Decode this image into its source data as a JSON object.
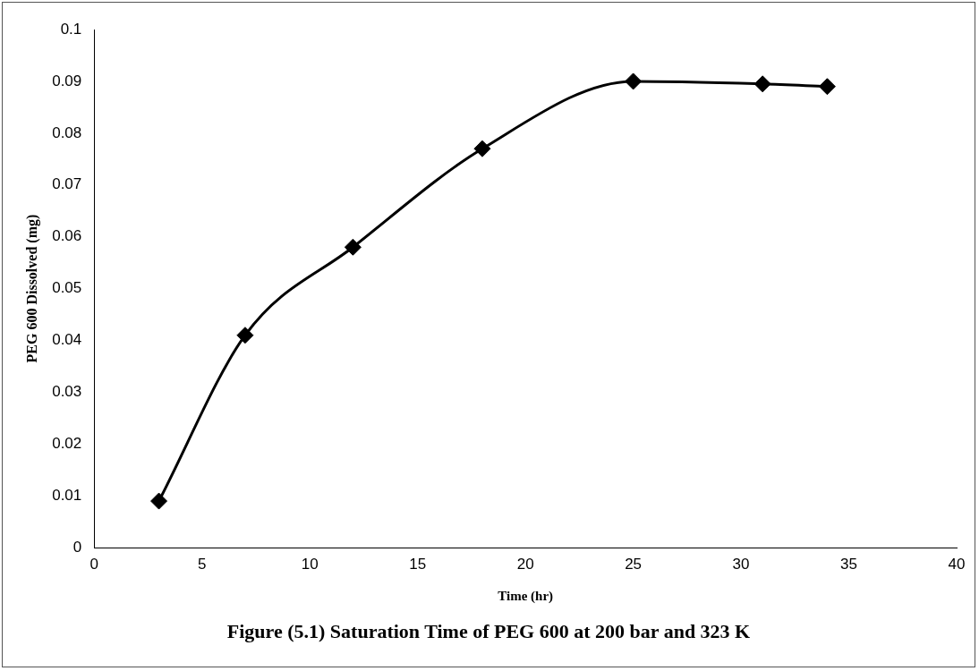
{
  "chart_data": {
    "type": "line",
    "title": "Figure (5.1) Saturation Time of PEG 600 at 200 bar and 323 K",
    "xlabel": "Time (hr)",
    "ylabel": "PEG 600 Dissolved (mg)",
    "x": [
      3,
      7,
      12,
      18,
      25,
      31,
      34
    ],
    "series": [
      {
        "color": "#000000",
        "values": [
          0.009,
          0.041,
          0.058,
          0.077,
          0.09,
          0.0895,
          0.089
        ]
      }
    ],
    "xlim": [
      0,
      40
    ],
    "xticks": [
      0,
      5,
      10,
      15,
      20,
      25,
      30,
      35,
      40
    ],
    "ylim": [
      0,
      0.1
    ],
    "yticks": [
      0,
      0.01,
      0.02,
      0.03,
      0.04,
      0.05,
      0.06,
      0.07,
      0.08,
      0.09,
      0.1
    ],
    "marker": "diamond",
    "line_style": "solid"
  }
}
